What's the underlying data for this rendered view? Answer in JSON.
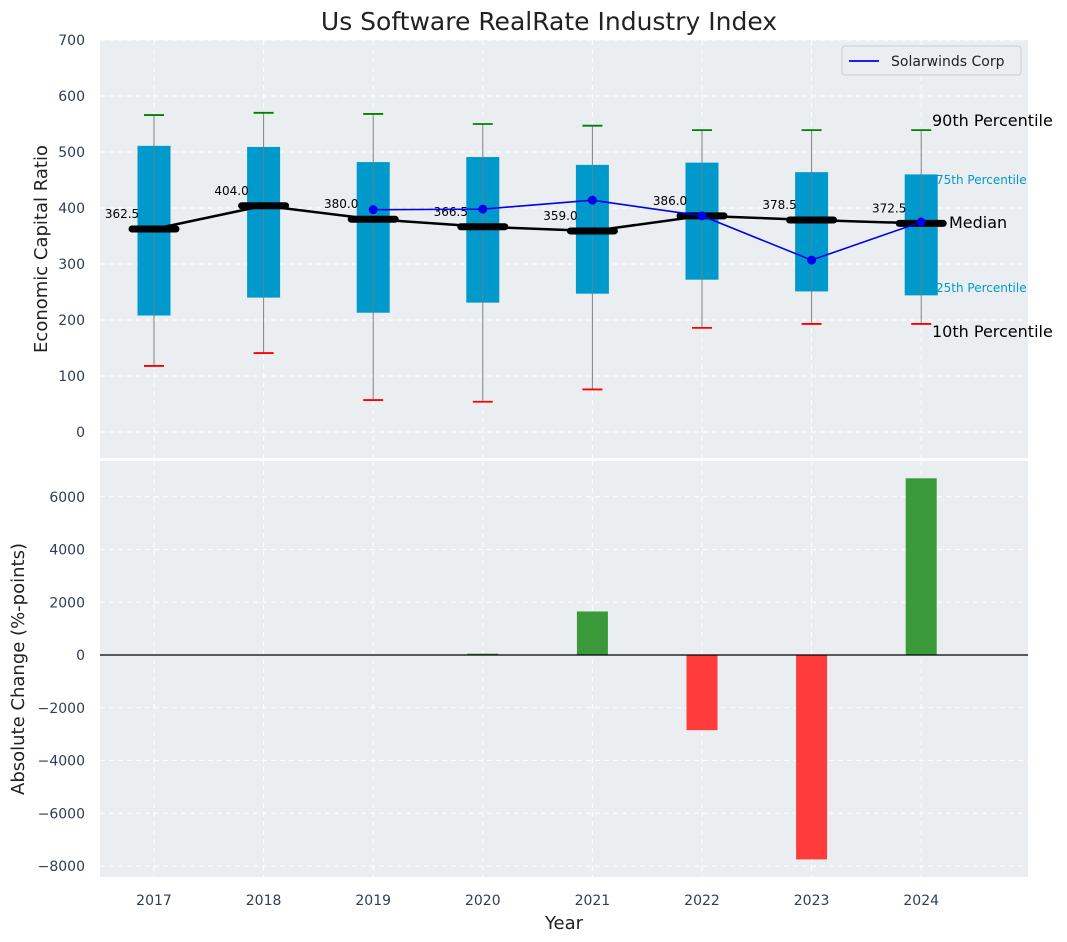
{
  "chart_data": [
    {
      "type": "box",
      "title": "Us Software RealRate Industry Index",
      "xlabel": "",
      "ylabel": "Economic Capital Ratio",
      "ylim": [
        -50,
        700
      ],
      "yticks": [
        0,
        100,
        200,
        300,
        400,
        500,
        600,
        700
      ],
      "grid": true,
      "categories": [
        "2017",
        "2018",
        "2019",
        "2020",
        "2021",
        "2022",
        "2023",
        "2024"
      ],
      "p10": [
        118,
        141,
        57,
        54,
        76,
        186,
        193,
        193
      ],
      "p25": [
        208,
        240,
        213,
        231,
        247,
        272,
        251,
        244
      ],
      "median": [
        362.5,
        404.0,
        380.0,
        366.5,
        359.0,
        386.0,
        378.5,
        372.5
      ],
      "median_labels": [
        "362.5",
        "404.0",
        "380.0",
        "366.5",
        "359.0",
        "386.0",
        "378.5",
        "372.5"
      ],
      "p75": [
        511,
        509,
        482,
        491,
        477,
        481,
        464,
        460
      ],
      "p90": [
        566,
        570,
        568,
        550,
        547,
        539,
        539,
        539
      ],
      "series": [
        {
          "name": "Solarwinds Corp",
          "x": [
            "2019",
            "2020",
            "2021",
            "2022",
            "2023",
            "2024"
          ],
          "values": [
            397,
            398,
            414,
            386,
            307,
            375
          ],
          "color": "#0000ee"
        }
      ],
      "legend": "top-right",
      "annotations": {
        "p90": "90th Percentile",
        "p75": "75th Percentile",
        "median": "Median",
        "p25": "25th Percentile",
        "p10": "10th Percentile"
      },
      "colors": {
        "box": "#0099cc",
        "median_line": "#000000",
        "p90_cap": "#008000",
        "p10_cap": "#ff0000",
        "whisker": "#808080",
        "background": "#eaeef0"
      }
    },
    {
      "type": "bar",
      "xlabel": "Year",
      "ylabel": "Absolute Change (%-points)",
      "ylim": [
        -8500,
        7500
      ],
      "yticks": [
        -8000,
        -6000,
        -4000,
        -2000,
        0,
        2000,
        4000,
        6000
      ],
      "ytick_labels": [
        "−8000",
        "−6000",
        "−4000",
        "−2000",
        "0",
        "2000",
        "4000",
        "6000"
      ],
      "grid": true,
      "categories": [
        "2017",
        "2018",
        "2019",
        "2020",
        "2021",
        "2022",
        "2023",
        "2024"
      ],
      "values": [
        0,
        0,
        0,
        50,
        1650,
        -2850,
        -7750,
        6700
      ],
      "colors": {
        "positive": "#3a9a3a",
        "negative": "#ff3b3b",
        "zero_line": "#000000"
      }
    }
  ]
}
